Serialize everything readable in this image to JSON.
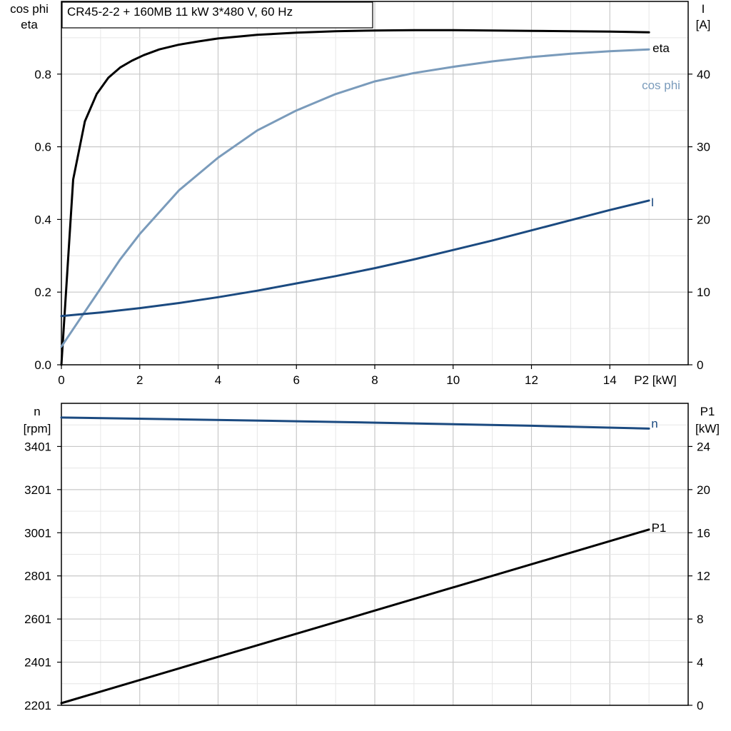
{
  "title": "CR45-2-2 + 160MB   11 kW   3*480 V, 60 Hz",
  "chart_data": [
    {
      "type": "line",
      "xlabel": "P2 [kW]",
      "xlim": [
        0,
        16
      ],
      "x_ticks": [
        "0",
        "2",
        "4",
        "6",
        "8",
        "10",
        "12",
        "14"
      ],
      "ylabel_left": [
        "cos phi",
        "eta"
      ],
      "ylim_left": [
        0,
        1.0
      ],
      "y_ticks_left": [
        "0.0",
        "0.2",
        "0.4",
        "0.6",
        "0.8"
      ],
      "ylabel_right": [
        "I",
        "[A]"
      ],
      "ylim_right": [
        0,
        50
      ],
      "y_ticks_right": [
        "0",
        "10",
        "20",
        "30",
        "40"
      ],
      "grid": true,
      "series": [
        {
          "name": "eta",
          "axis": "left",
          "color": "#000000",
          "x": [
            0,
            0.3,
            0.6,
            0.9,
            1.2,
            1.5,
            1.8,
            2.1,
            2.5,
            3,
            3.5,
            4,
            5,
            6,
            7,
            8,
            9,
            10,
            11,
            12,
            13,
            14,
            15
          ],
          "y": [
            0,
            0.51,
            0.67,
            0.745,
            0.79,
            0.818,
            0.837,
            0.852,
            0.868,
            0.881,
            0.89,
            0.898,
            0.908,
            0.914,
            0.918,
            0.92,
            0.921,
            0.921,
            0.92,
            0.919,
            0.918,
            0.917,
            0.915
          ]
        },
        {
          "name": "cos phi",
          "axis": "left",
          "color": "#7a9bbb",
          "x": [
            0,
            0.5,
            1,
            1.5,
            2,
            3,
            4,
            5,
            6,
            7,
            8,
            9,
            10,
            11,
            12,
            13,
            14,
            15
          ],
          "y": [
            0.05,
            0.13,
            0.21,
            0.29,
            0.36,
            0.48,
            0.57,
            0.645,
            0.7,
            0.745,
            0.78,
            0.803,
            0.82,
            0.835,
            0.847,
            0.856,
            0.863,
            0.868
          ]
        },
        {
          "name": "I",
          "axis": "right",
          "color": "#1b4a80",
          "x": [
            0,
            1,
            2,
            3,
            4,
            5,
            6,
            7,
            8,
            9,
            10,
            11,
            12,
            13,
            14,
            15
          ],
          "y": [
            6.7,
            7.2,
            7.8,
            8.5,
            9.3,
            10.2,
            11.2,
            12.2,
            13.3,
            14.5,
            15.8,
            17.1,
            18.5,
            19.9,
            21.3,
            22.6
          ]
        }
      ]
    },
    {
      "type": "line",
      "xlim": [
        0,
        16
      ],
      "ylabel_left": [
        "n",
        "[rpm]"
      ],
      "ylim_left": [
        2201,
        3601
      ],
      "y_ticks_left": [
        "2201",
        "2401",
        "2601",
        "2801",
        "3001",
        "3201",
        "3401"
      ],
      "ylabel_right": [
        "P1",
        "[kW]"
      ],
      "ylim_right": [
        0,
        28
      ],
      "y_ticks_right": [
        "0",
        "4",
        "8",
        "12",
        "16",
        "20",
        "24"
      ],
      "grid": true,
      "series": [
        {
          "name": "n",
          "axis": "left",
          "color": "#1b4a80",
          "x": [
            0,
            3,
            6,
            9,
            12,
            15
          ],
          "y": [
            3535,
            3527,
            3518,
            3508,
            3497,
            3484
          ]
        },
        {
          "name": "P1",
          "axis": "right",
          "color": "#000000",
          "x": [
            0,
            15
          ],
          "y": [
            0.2,
            16.3
          ]
        }
      ]
    }
  ]
}
